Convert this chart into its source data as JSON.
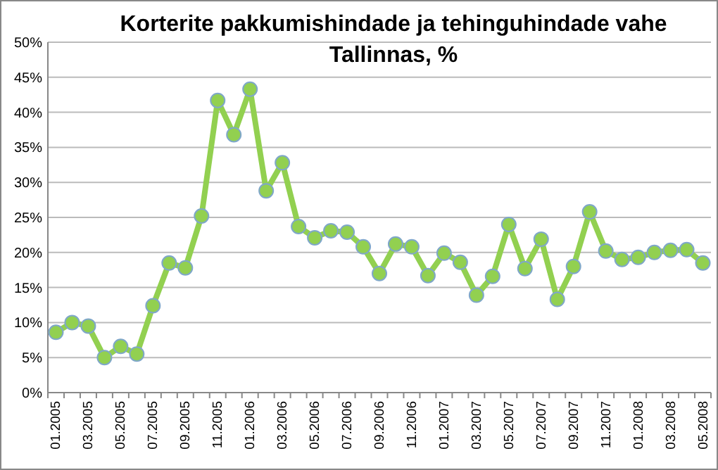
{
  "chart_data": {
    "type": "line",
    "title": "Korterite pakkumishindade ja tehinguhindade vahe Tallinnas, %",
    "categories": [
      "01.2005",
      null,
      "03.2005",
      null,
      "05.2005",
      null,
      "07.2005",
      null,
      "09.2005",
      null,
      "11.2005",
      null,
      "01.2006",
      null,
      "03.2006",
      null,
      "05.2006",
      null,
      "07.2006",
      null,
      "09.2006",
      null,
      "11.2006",
      null,
      "01.2007",
      null,
      "03.2007",
      null,
      "05.2007",
      null,
      "07.2007",
      null,
      "09.2007",
      null,
      "11.2007",
      null,
      "01.2008",
      null,
      "03.2008",
      null,
      "05.2008"
    ],
    "series": [
      {
        "color": "#92d050",
        "values": [
          8.6,
          10,
          9.5,
          5,
          6.6,
          5.5,
          12.4,
          18.5,
          17.8,
          25.2,
          41.7,
          36.8,
          43.3,
          28.8,
          32.8,
          23.7,
          22.1,
          23.1,
          22.9,
          20.8,
          17,
          21.2,
          20.8,
          16.7,
          19.9,
          18.6,
          13.9,
          16.6,
          24,
          17.7,
          21.9,
          13.3,
          18,
          25.8,
          20.2,
          19,
          19.3,
          20,
          20.3,
          20.4,
          18.5
        ]
      }
    ],
    "ylim": [
      0,
      50
    ],
    "yticks": [
      {
        "value": 0,
        "label": "0%"
      },
      {
        "value": 5,
        "label": "5%"
      },
      {
        "value": 10,
        "label": "10%"
      },
      {
        "value": 15,
        "label": "15%"
      },
      {
        "value": 20,
        "label": "20%"
      },
      {
        "value": 25,
        "label": "25%"
      },
      {
        "value": 30,
        "label": "30%"
      },
      {
        "value": 35,
        "label": "35%"
      },
      {
        "value": 40,
        "label": "40%"
      },
      {
        "value": 45,
        "label": "45%"
      },
      {
        "value": 50,
        "label": "50%"
      }
    ],
    "grid": "y",
    "marker": "circle",
    "line_style": "solid"
  }
}
